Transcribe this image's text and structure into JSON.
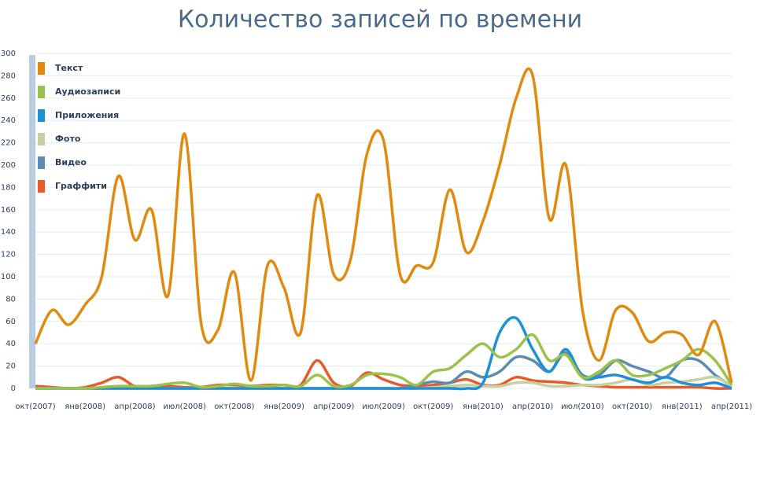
{
  "chart_data": {
    "type": "line",
    "title": "Количество записей по времени",
    "categories": [
      "окт(2007)",
      null,
      null,
      "янв(2008)",
      null,
      null,
      "апр(2008)",
      null,
      null,
      "июл(2008)",
      null,
      null,
      "окт(2008)",
      null,
      null,
      "янв(2009)",
      null,
      null,
      "апр(2009)",
      null,
      null,
      "июл(2009)",
      null,
      null,
      "окт(2009)",
      null,
      null,
      "янв(2010)",
      null,
      null,
      "апр(2010)",
      null,
      null,
      "июл(2010)",
      null,
      null,
      "окт(2010)",
      null,
      null,
      "янв(2011)",
      null,
      null,
      "апр(2011)"
    ],
    "series": [
      {
        "name": "Текст",
        "color": "#e08a10",
        "values": [
          40,
          70,
          57,
          75,
          100,
          190,
          133,
          160,
          83,
          228,
          58,
          52,
          104,
          7,
          110,
          90,
          50,
          173,
          102,
          115,
          210,
          222,
          102,
          110,
          113,
          178,
          122,
          150,
          200,
          260,
          280,
          152,
          200,
          70,
          25,
          70,
          68,
          42,
          50,
          48,
          30,
          60,
          5
        ]
      },
      {
        "name": "Аудиозаписи",
        "color": "#9bc24a",
        "values": [
          0,
          0,
          0,
          0,
          1,
          2,
          2,
          2,
          4,
          5,
          1,
          2,
          4,
          2,
          2,
          3,
          2,
          12,
          2,
          3,
          12,
          13,
          10,
          3,
          15,
          18,
          30,
          40,
          28,
          35,
          48,
          25,
          30,
          10,
          15,
          25,
          12,
          12,
          18,
          25,
          35,
          25,
          3
        ]
      },
      {
        "name": "Приложения",
        "color": "#1e90d8",
        "values": [
          0,
          0,
          0,
          0,
          0,
          0,
          0,
          0,
          0,
          0,
          0,
          0,
          0,
          0,
          0,
          0,
          0,
          0,
          0,
          0,
          0,
          0,
          0,
          0,
          0,
          0,
          0,
          5,
          50,
          63,
          35,
          15,
          35,
          10,
          10,
          12,
          8,
          5,
          10,
          5,
          3,
          5,
          0
        ]
      },
      {
        "name": "Фото",
        "color": "#c8d0a0",
        "values": [
          0,
          0,
          0,
          0,
          0,
          0,
          0,
          0,
          0,
          0,
          0,
          0,
          0,
          0,
          0,
          0,
          0,
          0,
          0,
          0,
          0,
          0,
          0,
          0,
          1,
          2,
          3,
          2,
          2,
          5,
          5,
          2,
          2,
          3,
          3,
          5,
          8,
          3,
          5,
          6,
          8,
          10,
          2
        ]
      },
      {
        "name": "Видео",
        "color": "#5b8db0",
        "values": [
          0,
          0,
          0,
          0,
          0,
          0,
          0,
          0,
          0,
          0,
          0,
          0,
          0,
          0,
          0,
          0,
          0,
          0,
          0,
          0,
          0,
          0,
          0,
          3,
          6,
          5,
          15,
          10,
          15,
          28,
          25,
          15,
          32,
          12,
          12,
          25,
          20,
          15,
          10,
          25,
          25,
          12,
          2
        ]
      },
      {
        "name": "Граффити",
        "color": "#e85a2a",
        "values": [
          2,
          1,
          0,
          1,
          5,
          10,
          2,
          2,
          2,
          1,
          1,
          3,
          3,
          2,
          3,
          3,
          3,
          25,
          5,
          2,
          14,
          8,
          3,
          2,
          3,
          5,
          8,
          3,
          3,
          10,
          7,
          6,
          5,
          3,
          2,
          1,
          1,
          1,
          1,
          1,
          1,
          0,
          0
        ]
      }
    ],
    "ylim": [
      0,
      300
    ],
    "yticks": [
      0,
      20,
      40,
      60,
      80,
      100,
      120,
      140,
      160,
      180,
      200,
      220,
      240,
      260,
      280,
      300
    ],
    "grid": true,
    "legend": "top-left"
  }
}
